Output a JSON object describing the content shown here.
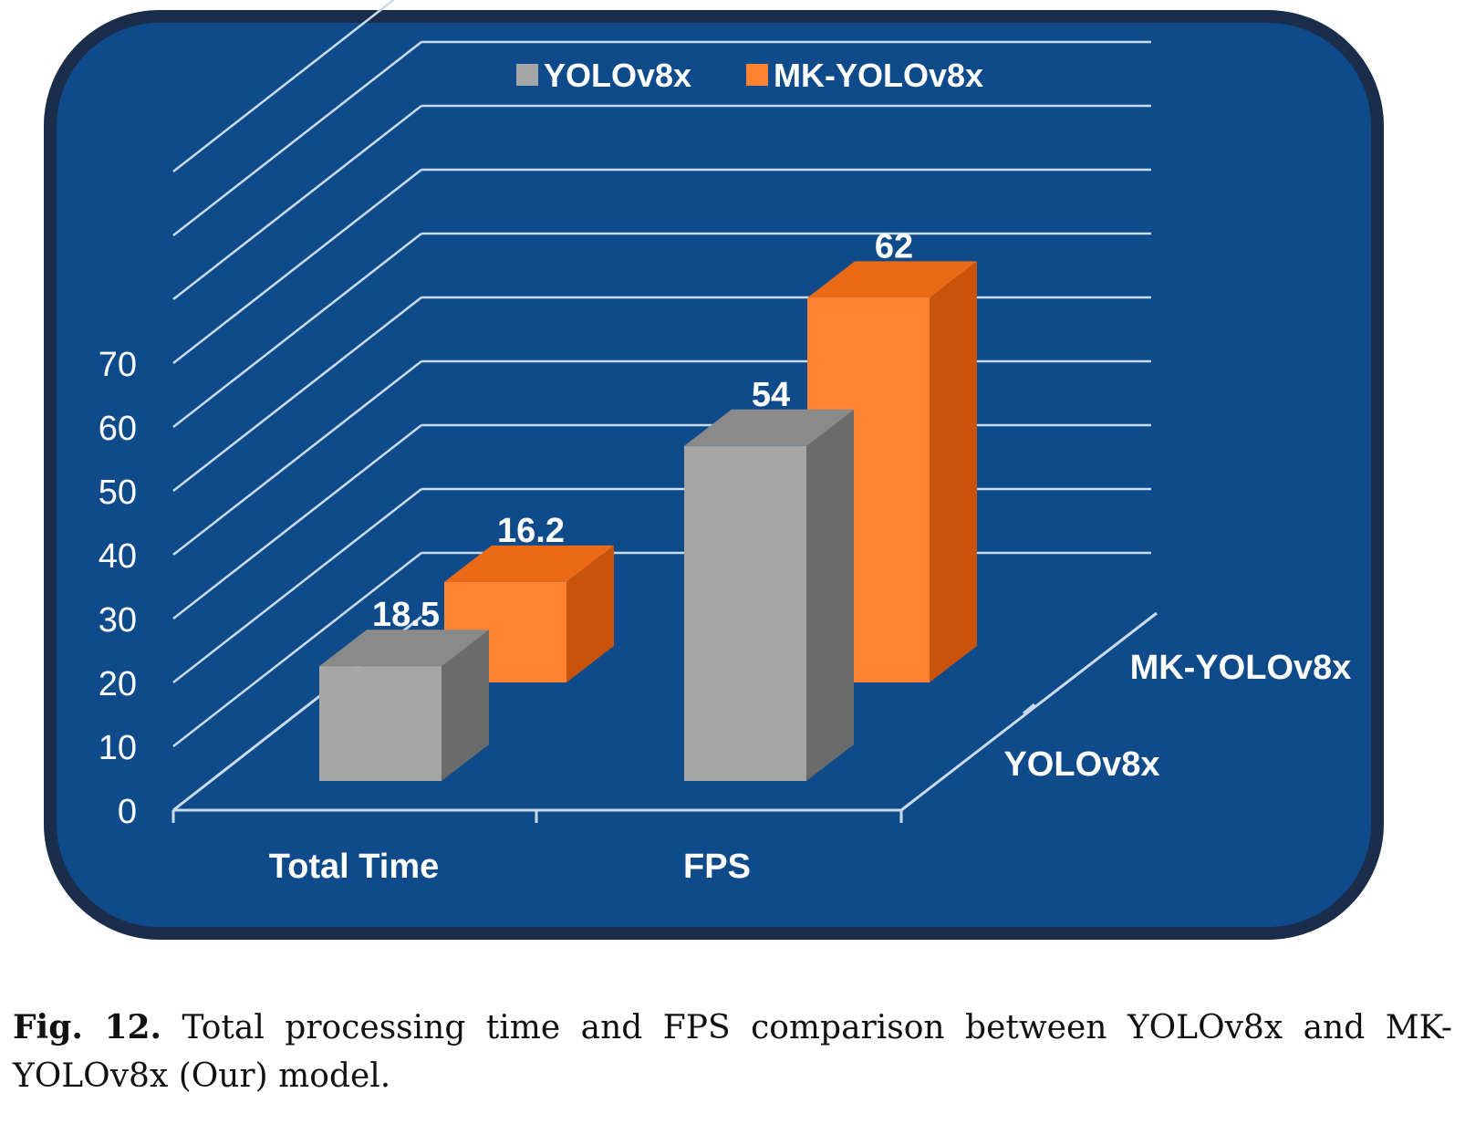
{
  "figure": {
    "label": "Fig. 12.",
    "caption": "Total processing time and FPS comparison between YOLOv8x and MK-YOLOv8x (Our) model."
  },
  "colors": {
    "background": "#0f4a8a",
    "frame": "#1a2d4a",
    "grid": "#c9dcef",
    "yolov8x_front": "#a6a6a6",
    "yolov8x_top": "#8a8a8a",
    "yolov8x_side": "#6b6b6b",
    "mk_front": "#ff8432",
    "mk_top": "#ea6a18",
    "mk_side": "#c9530a",
    "label_text": "#ffffff"
  },
  "chart_data": {
    "type": "bar",
    "style": "3d-clustered-column",
    "categories": [
      "Total Time",
      "FPS"
    ],
    "series": [
      {
        "name": "YOLOv8x",
        "values": [
          18.5,
          54
        ],
        "color": "#a6a6a6"
      },
      {
        "name": "MK-YOLOv8x",
        "values": [
          16.2,
          62
        ],
        "color": "#ff8432"
      }
    ],
    "data_labels": [
      "18.5",
      "54",
      "16.2",
      "62"
    ],
    "y_ticks": [
      "0",
      "10",
      "20",
      "30",
      "40",
      "50",
      "60",
      "70"
    ],
    "depth_labels": [
      "MK-YOLOv8x",
      "YOLOv8x"
    ],
    "ylim": [
      0,
      100
    ],
    "grid": true,
    "legend": "top-center"
  }
}
